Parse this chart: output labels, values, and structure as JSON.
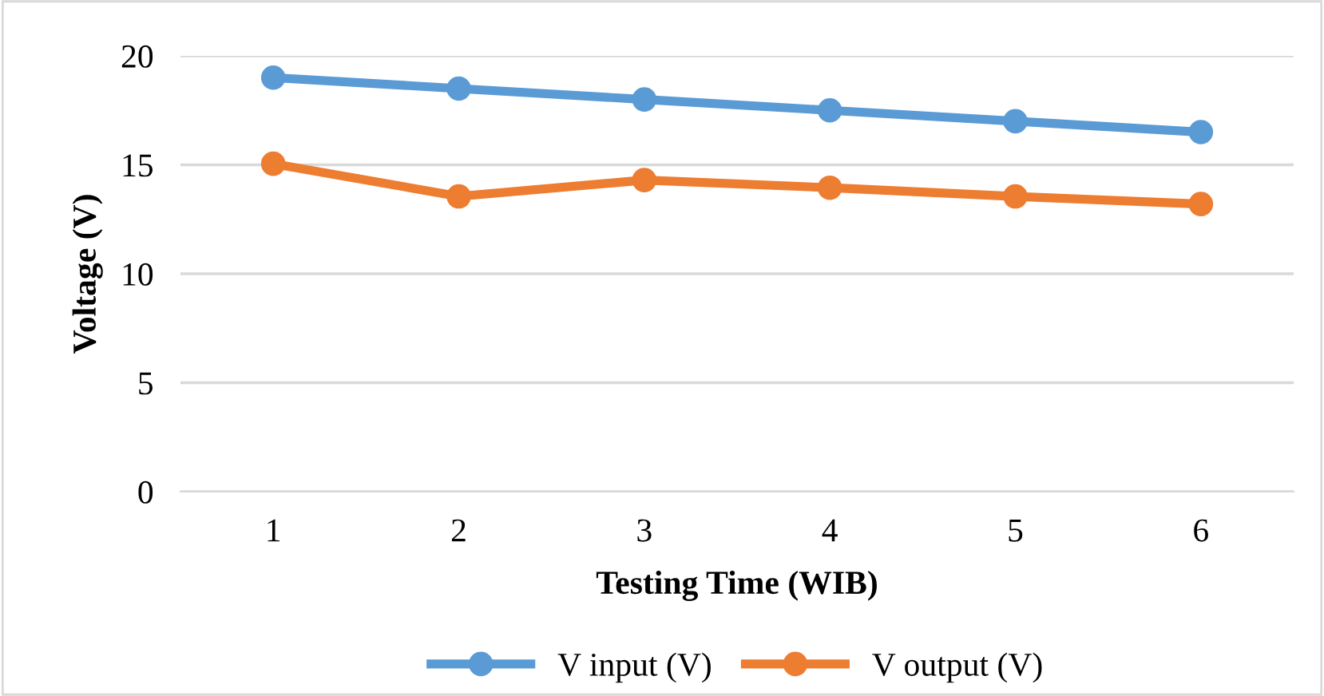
{
  "chart_data": {
    "type": "line",
    "xlabel": "Testing Time (WIB)",
    "ylabel": "Voltage (V)",
    "categories": [
      "1",
      "2",
      "3",
      "4",
      "5",
      "6"
    ],
    "series": [
      {
        "name": "V input (V)",
        "color": "#5b9bd5",
        "values": [
          19.0,
          18.5,
          18.0,
          17.5,
          17.0,
          16.5
        ]
      },
      {
        "name": "V output (V)",
        "color": "#ed7d31",
        "values": [
          15.05,
          13.55,
          14.3,
          13.95,
          13.55,
          13.2
        ]
      }
    ],
    "ylim": [
      0,
      20
    ],
    "yticks": [
      0,
      5,
      10,
      15,
      20
    ],
    "grid": "y",
    "legend": "bottom",
    "marker": "circle",
    "line_style": "solid"
  }
}
